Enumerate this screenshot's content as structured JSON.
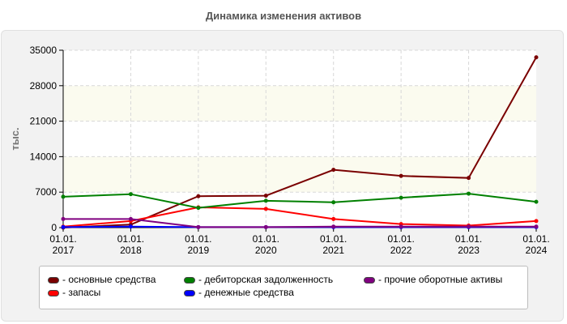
{
  "chart_data": {
    "type": "line",
    "title": "Динамика изменения активов",
    "ylabel": "тыс.",
    "ylim": [
      0,
      35000
    ],
    "yticks": [
      "0",
      "7000",
      "14000",
      "21000",
      "28000",
      "35000"
    ],
    "categories": [
      [
        "01.01.",
        "2017"
      ],
      [
        "01.01.",
        "2018"
      ],
      [
        "01.01.",
        "2019"
      ],
      [
        "01.01.",
        "2020"
      ],
      [
        "01.01.",
        "2021"
      ],
      [
        "01.01.",
        "2022"
      ],
      [
        "01.01.",
        "2023"
      ],
      [
        "01.01.",
        "2024"
      ]
    ],
    "grid": true,
    "legend_position": "bottom",
    "series": [
      {
        "name": "- основные средства",
        "color": "#7a0000",
        "values": [
          0,
          600,
          6200,
          6300,
          11400,
          10200,
          9800,
          33600
        ]
      },
      {
        "name": "- запасы",
        "color": "#ff0000",
        "values": [
          200,
          1300,
          4000,
          3700,
          1700,
          700,
          400,
          1300
        ]
      },
      {
        "name": "- дебиторская задолженность",
        "color": "#008000",
        "values": [
          6100,
          6600,
          3900,
          5300,
          5000,
          5900,
          6700,
          5100
        ]
      },
      {
        "name": "- денежные средства",
        "color": "#0000ff",
        "values": [
          100,
          200,
          100,
          100,
          100,
          100,
          100,
          100
        ]
      },
      {
        "name": "- прочие оборотные активы",
        "color": "#800080",
        "values": [
          1700,
          1700,
          100,
          100,
          200,
          200,
          200,
          200
        ]
      }
    ]
  }
}
